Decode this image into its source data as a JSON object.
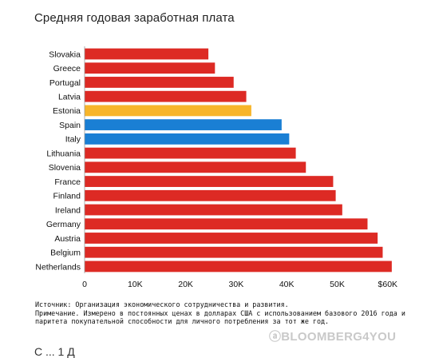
{
  "title": "Средняя годовая заработная плата",
  "notes": {
    "source": "Источник: Организация экономического сотрудничества и развития.",
    "note": "Примечание. Измерено в постоянных ценах в долларах США с использованием базового 2016 года и паритета покупательной способности для личного потребления за тот же год."
  },
  "watermark": "ⓐBLOOMBERG4YOU",
  "cutoff_text": "С ... 1 Д",
  "colors": {
    "default": "#dd2a24",
    "estonia": "#f7b52a",
    "highlight": "#1a7fd4"
  },
  "chart_data": {
    "type": "bar",
    "orientation": "horizontal",
    "title": "Средняя годовая заработная плата",
    "categories": [
      "Slovakia",
      "Greece",
      "Portugal",
      "Latvia",
      "Estonia",
      "Spain",
      "Italy",
      "Lithuania",
      "Slovenia",
      "France",
      "Finland",
      "Ireland",
      "Germany",
      "Austria",
      "Belgium",
      "Netherlands"
    ],
    "values": [
      24500,
      25800,
      29500,
      32000,
      33000,
      39000,
      40500,
      41800,
      43800,
      49200,
      49700,
      51000,
      56000,
      58000,
      59000,
      60800
    ],
    "bar_colors": [
      "default",
      "default",
      "default",
      "default",
      "estonia",
      "highlight",
      "highlight",
      "default",
      "default",
      "default",
      "default",
      "default",
      "default",
      "default",
      "default",
      "default"
    ],
    "xlim": [
      0,
      60000
    ],
    "xticks": [
      0,
      10000,
      20000,
      30000,
      40000,
      50000,
      60000
    ],
    "xtick_labels": [
      "0",
      "10K",
      "20K",
      "30K",
      "40K",
      "50K",
      "$60K"
    ],
    "grid": false
  }
}
